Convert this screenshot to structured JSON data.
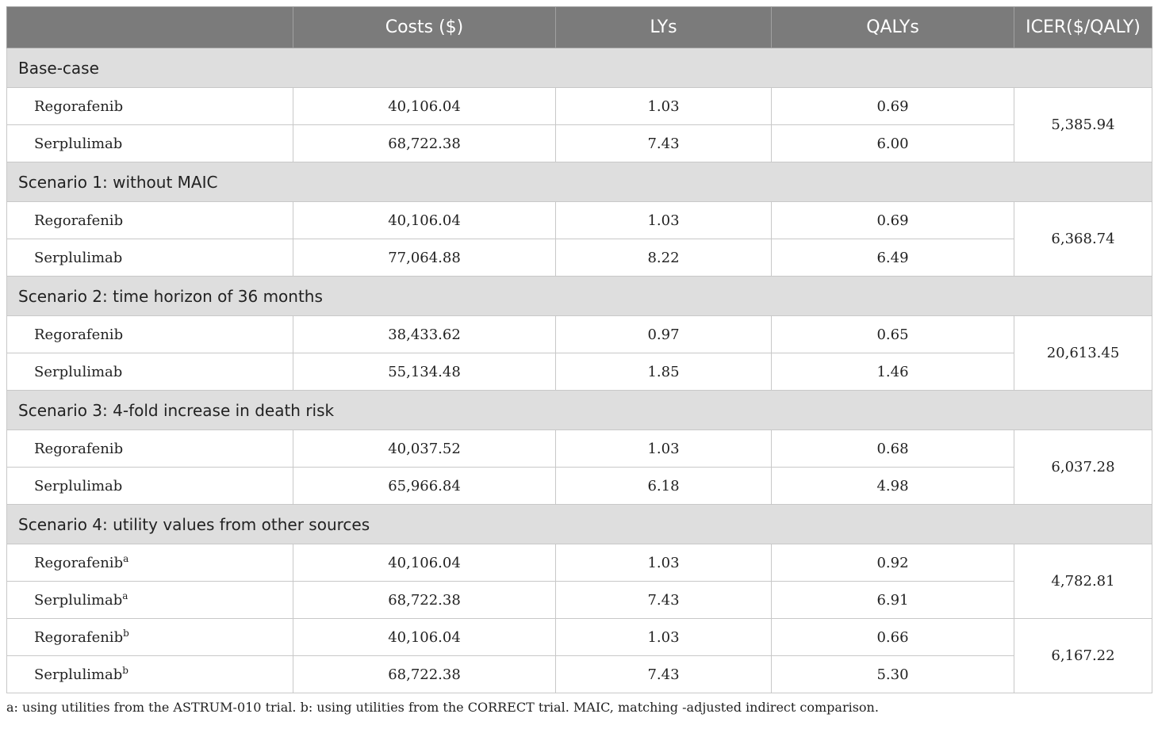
{
  "header": {
    "col0": "",
    "costs": "Costs ($)",
    "lys": "LYs",
    "qalys": "QALYs",
    "icer": "ICER($/QALY)"
  },
  "sections": [
    {
      "title": "Base-case",
      "rows": [
        {
          "drug": "Regorafenib",
          "sup": "",
          "costs": "40,106.04",
          "lys": "1.03",
          "qalys": "0.69"
        },
        {
          "drug": "Serplulimab",
          "sup": "",
          "costs": "68,722.38",
          "lys": "7.43",
          "qalys": "6.00"
        }
      ],
      "icer": "5,385.94"
    },
    {
      "title": "Scenario 1: without MAIC",
      "rows": [
        {
          "drug": "Regorafenib",
          "sup": "",
          "costs": "40,106.04",
          "lys": "1.03",
          "qalys": "0.69"
        },
        {
          "drug": "Serplulimab",
          "sup": "",
          "costs": "77,064.88",
          "lys": "8.22",
          "qalys": "6.49"
        }
      ],
      "icer": "6,368.74"
    },
    {
      "title": "Scenario 2: time horizon of 36 months",
      "rows": [
        {
          "drug": "Regorafenib",
          "sup": "",
          "costs": "38,433.62",
          "lys": "0.97",
          "qalys": "0.65"
        },
        {
          "drug": "Serplulimab",
          "sup": "",
          "costs": "55,134.48",
          "lys": "1.85",
          "qalys": "1.46"
        }
      ],
      "icer": "20,613.45"
    },
    {
      "title": "Scenario 3: 4-fold increase in death risk",
      "rows": [
        {
          "drug": "Regorafenib",
          "sup": "",
          "costs": "40,037.52",
          "lys": "1.03",
          "qalys": "0.68"
        },
        {
          "drug": "Serplulimab",
          "sup": "",
          "costs": "65,966.84",
          "lys": "6.18",
          "qalys": "4.98"
        }
      ],
      "icer": "6,037.28"
    },
    {
      "title": "Scenario 4: utility values from other sources",
      "rows": [
        {
          "drug": "Regorafenib",
          "sup": "a",
          "costs": "40,106.04",
          "lys": "1.03",
          "qalys": "0.92"
        },
        {
          "drug": "Serplulimab",
          "sup": "a",
          "costs": "68,722.38",
          "lys": "7.43",
          "qalys": "6.91"
        },
        {
          "drug": "Regorafenib",
          "sup": "b",
          "costs": "40,106.04",
          "lys": "1.03",
          "qalys": "0.66"
        },
        {
          "drug": "Serplulimab",
          "sup": "b",
          "costs": "68,722.38",
          "lys": "7.43",
          "qalys": "5.30"
        }
      ],
      "icer_groups": [
        "4,782.81",
        "6,167.22"
      ]
    }
  ],
  "footnote": "a: using utilities from the ASTRUM-010 trial. b: using utilities from the CORRECT trial. MAIC, matching -adjusted indirect comparison."
}
